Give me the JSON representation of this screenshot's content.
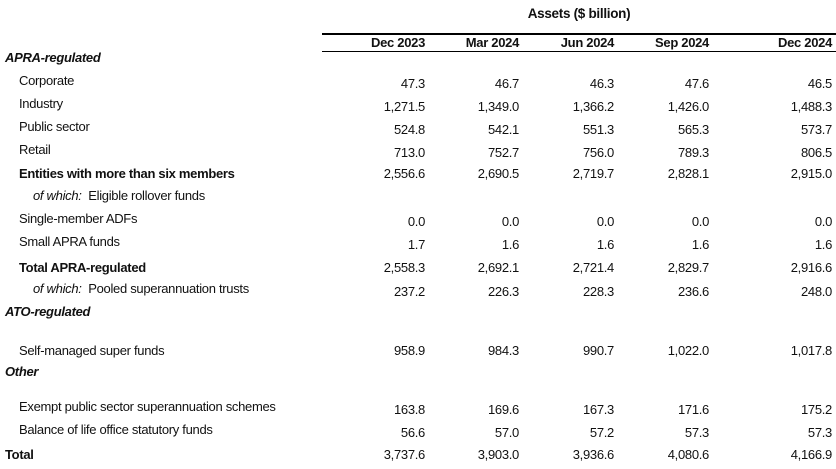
{
  "title": "Assets ($ billion)",
  "columns": [
    "Dec 2023",
    "Mar 2024",
    "Jun 2024",
    "Sep 2024",
    "Dec 2024"
  ],
  "sections": {
    "apra": "APRA-regulated",
    "ato": "ATO-regulated",
    "other": "Other"
  },
  "rows": [
    {
      "label": "Corporate",
      "values": [
        "47.3",
        "46.7",
        "46.3",
        "47.6",
        "46.5"
      ]
    },
    {
      "label": "Industry",
      "values": [
        "1,271.5",
        "1,349.0",
        "1,366.2",
        "1,426.0",
        "1,488.3"
      ]
    },
    {
      "label": "Public sector",
      "values": [
        "524.8",
        "542.1",
        "551.3",
        "565.3",
        "573.7"
      ]
    },
    {
      "label": "Retail",
      "values": [
        "713.0",
        "752.7",
        "756.0",
        "789.3",
        "806.5"
      ]
    },
    {
      "label": "Entities with more than six members",
      "values": [
        "2,556.6",
        "2,690.5",
        "2,719.7",
        "2,828.1",
        "2,915.0"
      ]
    },
    {
      "prefix": "of which:",
      "label": "Eligible rollover funds"
    },
    {
      "label": "Single-member ADFs",
      "values": [
        "0.0",
        "0.0",
        "0.0",
        "0.0",
        "0.0"
      ]
    },
    {
      "label": "Small APRA funds",
      "values": [
        "1.7",
        "1.6",
        "1.6",
        "1.6",
        "1.6"
      ]
    },
    {
      "label": "Total APRA-regulated",
      "values": [
        "2,558.3",
        "2,692.1",
        "2,721.4",
        "2,829.7",
        "2,916.6"
      ]
    },
    {
      "prefix": "of which:",
      "label": "Pooled superannuation trusts",
      "values": [
        "237.2",
        "226.3",
        "228.3",
        "236.6",
        "248.0"
      ]
    },
    {
      "label": "Self-managed super funds",
      "values": [
        "958.9",
        "984.3",
        "990.7",
        "1,022.0",
        "1,017.8"
      ]
    },
    {
      "label": "Exempt public sector superannuation schemes",
      "values": [
        "163.8",
        "169.6",
        "167.3",
        "171.6",
        "175.2"
      ]
    },
    {
      "label": "Balance of life office statutory funds",
      "values": [
        "56.6",
        "57.0",
        "57.2",
        "57.3",
        "57.3"
      ]
    },
    {
      "label": "Total",
      "values": [
        "3,737.6",
        "3,903.0",
        "3,936.6",
        "4,080.6",
        "4,166.9"
      ]
    }
  ]
}
